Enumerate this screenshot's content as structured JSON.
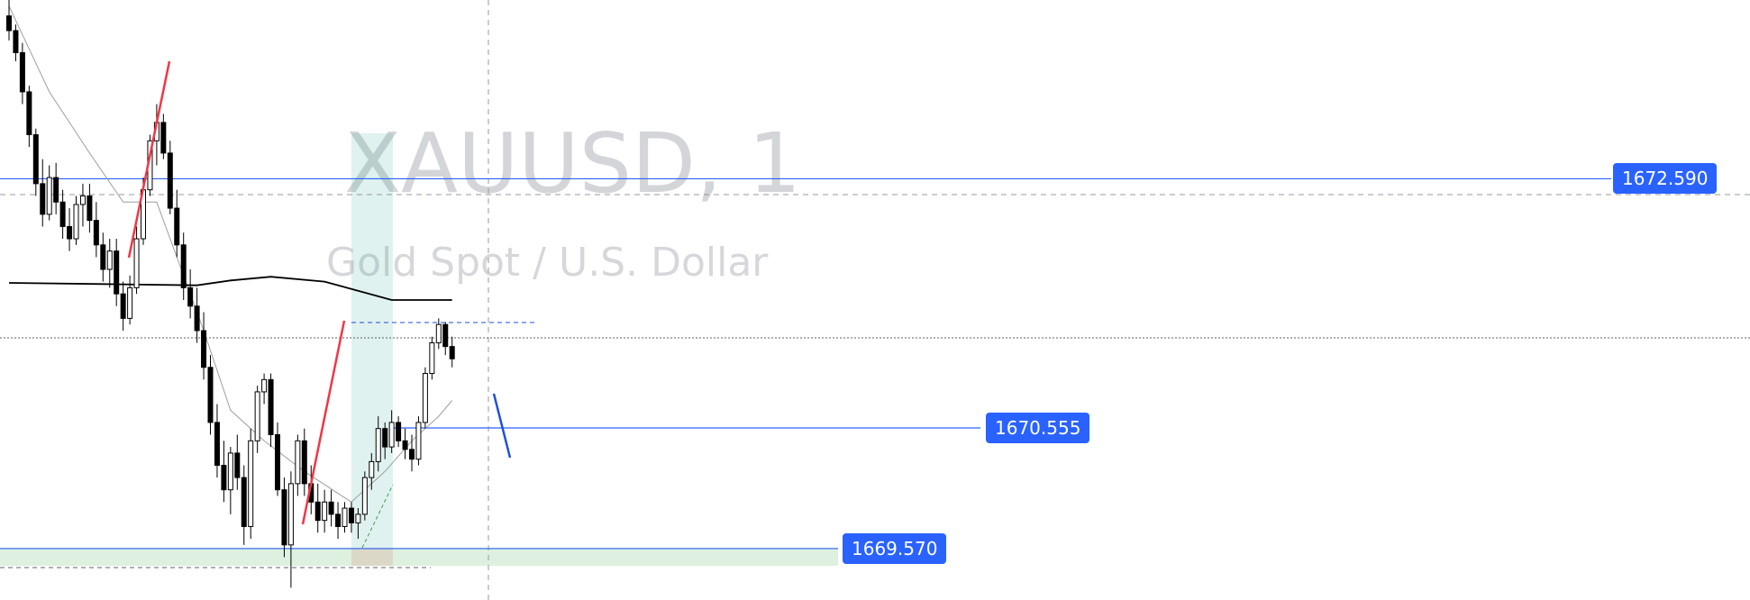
{
  "watermark": {
    "symbol": "XAUUSD, 1",
    "description": "Gold Spot / U.S. Dollar"
  },
  "chart_data": {
    "type": "candlestick",
    "symbol": "XAUUSD",
    "interval": "1",
    "ylim": [
      1669.15,
      1674.05
    ],
    "grid": false,
    "colors": {
      "up_body": "#ffffff",
      "down_body": "#000000",
      "wick": "#000000",
      "moving_average_long": "#000000",
      "moving_average_short": "#9e9e9e",
      "level_line": "#2962ff",
      "price_tag": "#2962ff",
      "zone_long": "#26a69a",
      "zone_short": "#ef5350",
      "zone_green": "#c8e6c9",
      "zigzag_red": "#f23645",
      "zigzag_blue": "#1e4fd8"
    },
    "candles": [
      [
        1673.92,
        1674.05,
        1673.72,
        1673.8
      ],
      [
        1673.8,
        1673.85,
        1673.55,
        1673.62
      ],
      [
        1673.62,
        1673.7,
        1673.2,
        1673.3
      ],
      [
        1673.3,
        1673.35,
        1672.85,
        1672.95
      ],
      [
        1672.95,
        1673.0,
        1672.45,
        1672.55
      ],
      [
        1672.55,
        1672.75,
        1672.2,
        1672.3
      ],
      [
        1672.3,
        1672.7,
        1672.25,
        1672.6
      ],
      [
        1672.6,
        1672.72,
        1672.3,
        1672.4
      ],
      [
        1672.4,
        1672.5,
        1672.1,
        1672.2
      ],
      [
        1672.2,
        1672.35,
        1672.0,
        1672.1
      ],
      [
        1672.1,
        1672.45,
        1672.05,
        1672.38
      ],
      [
        1672.38,
        1672.55,
        1672.2,
        1672.45
      ],
      [
        1672.45,
        1672.55,
        1672.15,
        1672.25
      ],
      [
        1672.25,
        1672.4,
        1671.95,
        1672.05
      ],
      [
        1672.05,
        1672.15,
        1671.75,
        1671.85
      ],
      [
        1671.85,
        1672.1,
        1671.7,
        1672.0
      ],
      [
        1672.0,
        1672.1,
        1671.55,
        1671.65
      ],
      [
        1671.65,
        1671.75,
        1671.35,
        1671.45
      ],
      [
        1671.45,
        1671.8,
        1671.4,
        1671.7
      ],
      [
        1671.7,
        1672.2,
        1671.65,
        1672.1
      ],
      [
        1672.1,
        1672.6,
        1672.05,
        1672.5
      ],
      [
        1672.5,
        1672.95,
        1672.45,
        1672.9
      ],
      [
        1672.9,
        1673.2,
        1672.7,
        1673.05
      ],
      [
        1673.05,
        1673.12,
        1672.75,
        1672.8
      ],
      [
        1672.8,
        1672.9,
        1672.3,
        1672.35
      ],
      [
        1672.35,
        1672.5,
        1671.95,
        1672.05
      ],
      [
        1672.05,
        1672.15,
        1671.6,
        1671.7
      ],
      [
        1671.7,
        1671.85,
        1671.45,
        1671.55
      ],
      [
        1671.55,
        1671.7,
        1671.25,
        1671.35
      ],
      [
        1671.35,
        1671.5,
        1670.95,
        1671.05
      ],
      [
        1671.05,
        1671.15,
        1670.5,
        1670.6
      ],
      [
        1670.6,
        1670.75,
        1670.15,
        1670.25
      ],
      [
        1670.25,
        1670.45,
        1669.95,
        1670.05
      ],
      [
        1670.05,
        1670.4,
        1669.85,
        1670.35
      ],
      [
        1670.35,
        1670.5,
        1670.05,
        1670.15
      ],
      [
        1670.15,
        1670.25,
        1669.6,
        1669.75
      ],
      [
        1669.75,
        1670.55,
        1669.65,
        1670.45
      ],
      [
        1670.45,
        1670.9,
        1670.35,
        1670.85
      ],
      [
        1670.85,
        1671.0,
        1670.75,
        1670.95
      ],
      [
        1670.95,
        1671.0,
        1670.4,
        1670.5
      ],
      [
        1670.5,
        1670.6,
        1670.0,
        1670.05
      ],
      [
        1670.05,
        1670.15,
        1669.5,
        1669.6
      ],
      [
        1669.6,
        1670.2,
        1669.25,
        1670.1
      ],
      [
        1670.1,
        1670.5,
        1670.0,
        1670.45
      ],
      [
        1670.45,
        1670.55,
        1670.0,
        1670.1
      ],
      [
        1670.1,
        1670.25,
        1669.85,
        1669.95
      ],
      [
        1669.95,
        1670.1,
        1669.7,
        1669.8
      ],
      [
        1669.8,
        1670.05,
        1669.7,
        1669.95
      ],
      [
        1669.95,
        1670.05,
        1669.75,
        1669.85
      ],
      [
        1669.85,
        1669.95,
        1669.65,
        1669.75
      ],
      [
        1669.75,
        1669.95,
        1669.7,
        1669.9
      ],
      [
        1669.9,
        1669.95,
        1669.7,
        1669.78
      ],
      [
        1669.78,
        1669.9,
        1669.65,
        1669.85
      ],
      [
        1669.85,
        1670.2,
        1669.8,
        1670.15
      ],
      [
        1670.15,
        1670.35,
        1670.05,
        1670.28
      ],
      [
        1670.28,
        1670.65,
        1670.2,
        1670.55
      ],
      [
        1670.55,
        1670.6,
        1670.3,
        1670.4
      ],
      [
        1670.4,
        1670.7,
        1670.35,
        1670.6
      ],
      [
        1670.6,
        1670.65,
        1670.4,
        1670.45
      ],
      [
        1670.45,
        1670.55,
        1670.3,
        1670.38
      ],
      [
        1670.38,
        1670.5,
        1670.2,
        1670.3
      ],
      [
        1670.3,
        1670.65,
        1670.25,
        1670.6
      ],
      [
        1670.6,
        1671.05,
        1670.55,
        1671.0
      ],
      [
        1671.0,
        1671.3,
        1670.95,
        1671.25
      ],
      [
        1671.25,
        1671.45,
        1671.2,
        1671.4
      ],
      [
        1671.4,
        1671.42,
        1671.15,
        1671.22
      ],
      [
        1671.22,
        1671.3,
        1671.05,
        1671.12
      ]
    ],
    "moving_average_long": [
      [
        0,
        1671.74
      ],
      [
        14,
        1671.73
      ],
      [
        28,
        1671.72
      ],
      [
        33,
        1671.76
      ],
      [
        39,
        1671.79
      ],
      [
        47,
        1671.75
      ],
      [
        57,
        1671.6
      ],
      [
        66,
        1671.6
      ]
    ],
    "moving_average_short": [
      [
        0,
        1674.0
      ],
      [
        6,
        1673.3
      ],
      [
        12,
        1672.8
      ],
      [
        17,
        1672.4
      ],
      [
        22,
        1672.4
      ],
      [
        24,
        1672.1
      ],
      [
        29,
        1671.35
      ],
      [
        33,
        1670.7
      ],
      [
        38,
        1670.45
      ],
      [
        44,
        1670.2
      ],
      [
        51,
        1669.95
      ],
      [
        56,
        1670.2
      ],
      [
        60,
        1670.45
      ],
      [
        64,
        1670.65
      ],
      [
        66,
        1670.78
      ]
    ],
    "levels": [
      {
        "price": 1672.59,
        "label": "1672.590",
        "x_start": 0,
        "x_end": 1788,
        "tag_x": 1790
      },
      {
        "price": 1670.555,
        "label": "1670.555",
        "x_start": 432,
        "x_end": 1088,
        "tag_x": 1094
      },
      {
        "price": 1669.57,
        "label": "1669.570",
        "x_start": 0,
        "x_end": 930,
        "tag_x": 935
      }
    ]
  }
}
